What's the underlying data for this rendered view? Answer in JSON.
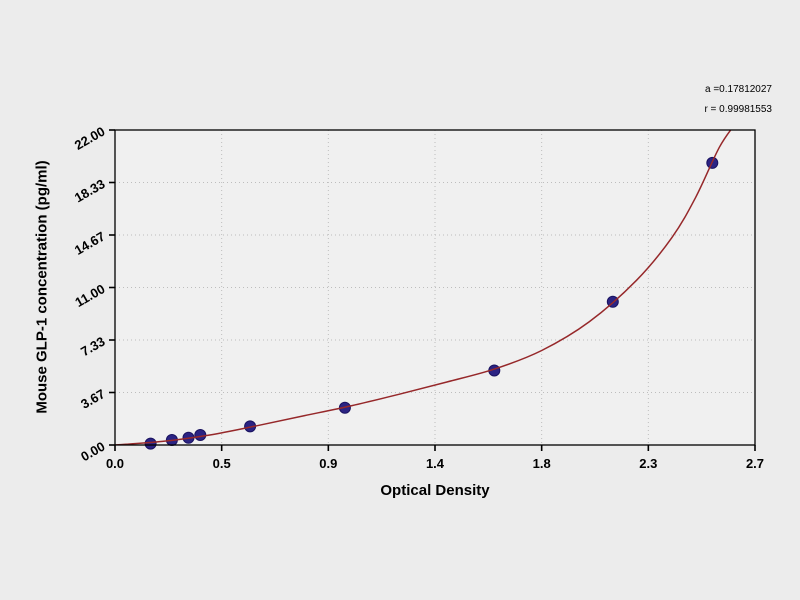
{
  "page": {
    "background": "#ececec"
  },
  "fit_stats": {
    "line1": "a =0.17812027",
    "line2": "r = 0.99981553"
  },
  "chart_data": {
    "type": "scatter",
    "title": "",
    "xlabel": "Optical Density",
    "ylabel": "Mouse GLP-1 concentration (pg/ml)",
    "xlim": [
      0,
      2.7
    ],
    "ylim": [
      0,
      22
    ],
    "x_tick_labels": [
      "0.0",
      "0.5",
      "0.9",
      "1.4",
      "1.8",
      "2.3",
      "2.7"
    ],
    "y_tick_labels": [
      "0.00",
      "3.67",
      "7.33",
      "11.00",
      "14.67",
      "18.33",
      "22.00"
    ],
    "grid": true,
    "legend": "none",
    "series": [
      {
        "name": "standard-points",
        "kind": "scatter",
        "marker": "circle",
        "marker_color": "#2b2383",
        "marker_edge": "#191260",
        "points": [
          [
            0.15,
            0.1
          ],
          [
            0.24,
            0.35
          ],
          [
            0.31,
            0.5
          ],
          [
            0.36,
            0.7
          ],
          [
            0.57,
            1.3
          ],
          [
            0.97,
            2.6
          ],
          [
            1.6,
            5.2
          ],
          [
            2.1,
            10.0
          ],
          [
            2.52,
            19.7
          ]
        ]
      },
      {
        "name": "fit-curve",
        "kind": "line",
        "line_color": "#96282a",
        "points": [
          [
            0.0,
            0.0
          ],
          [
            0.2,
            0.25
          ],
          [
            0.4,
            0.7
          ],
          [
            0.6,
            1.35
          ],
          [
            0.8,
            2.05
          ],
          [
            1.0,
            2.75
          ],
          [
            1.2,
            3.55
          ],
          [
            1.4,
            4.4
          ],
          [
            1.6,
            5.3
          ],
          [
            1.8,
            6.6
          ],
          [
            2.0,
            8.6
          ],
          [
            2.2,
            11.5
          ],
          [
            2.35,
            14.5
          ],
          [
            2.45,
            17.3
          ],
          [
            2.55,
            20.8
          ],
          [
            2.62,
            22.5
          ]
        ]
      }
    ],
    "style": {
      "plot_fill": "#f0f0f0",
      "frame_color": "#000000",
      "grid_color": "#bdbdbd",
      "tick_color": "#000000",
      "tick_label_color": "#000000"
    }
  }
}
